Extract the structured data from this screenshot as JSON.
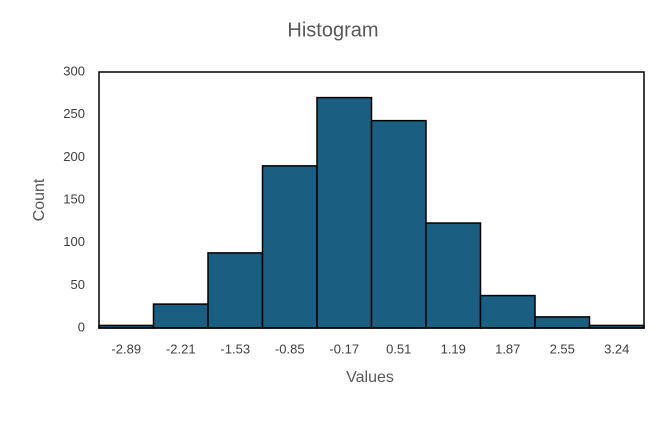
{
  "chart_data": {
    "type": "bar",
    "title": "Histogram",
    "x_label": "Values",
    "y_label": "Count",
    "categories": [
      "-2.89",
      "-2.21",
      "-1.53",
      "-0.85",
      "-0.17",
      "0.51",
      "1.19",
      "1.87",
      "2.55",
      "3.24"
    ],
    "values": [
      3,
      28,
      88,
      190,
      270,
      243,
      123,
      38,
      13,
      3
    ],
    "color": "#1a5f82",
    "ylim": [
      0,
      300
    ],
    "yticks": [
      0,
      50,
      100,
      150,
      200,
      250,
      300
    ],
    "grid": false
  }
}
